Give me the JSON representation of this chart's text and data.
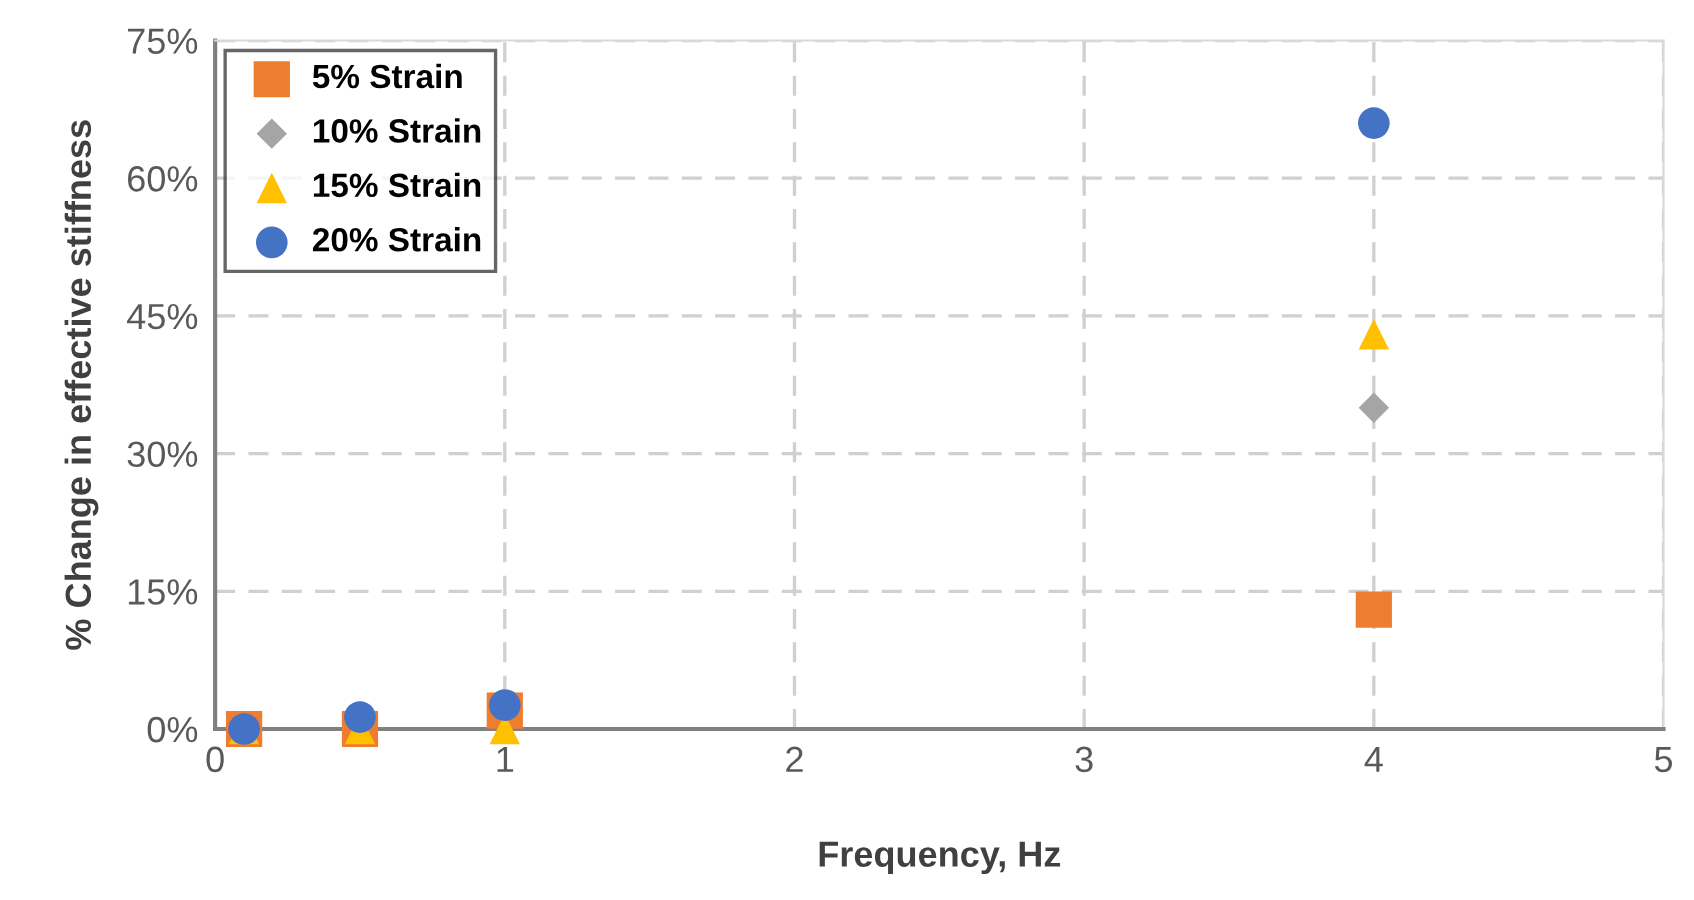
{
  "chart_data": {
    "type": "scatter",
    "xlabel": "Frequency, Hz",
    "ylabel": "% Change in effective stiffness",
    "x": [
      0.1,
      0.5,
      1,
      4
    ],
    "series": [
      {
        "name": "5% Strain",
        "color": "#ed7d31",
        "marker": "square",
        "values": [
          0,
          0,
          2,
          13
        ]
      },
      {
        "name": "10% Strain",
        "color": "#a5a5a5",
        "marker": "diamond",
        "values": [
          null,
          null,
          null,
          35
        ]
      },
      {
        "name": "15% Strain",
        "color": "#ffc000",
        "marker": "triangle",
        "values": [
          0,
          0,
          0,
          43
        ]
      },
      {
        "name": "20% Strain",
        "color": "#4472c4",
        "marker": "circle",
        "values": [
          0,
          1.3,
          2.6,
          66
        ]
      }
    ],
    "xlim": [
      0,
      5
    ],
    "xticks": [
      0,
      1,
      2,
      3,
      4,
      5
    ],
    "ylim": [
      0,
      75
    ],
    "yticks": [
      {
        "value": 0,
        "label": "0%"
      },
      {
        "value": 15,
        "label": "15%"
      },
      {
        "value": 30,
        "label": "30%"
      },
      {
        "value": 45,
        "label": "45%"
      },
      {
        "value": 60,
        "label": "60%"
      },
      {
        "value": 75,
        "label": "75%"
      }
    ],
    "grid": true,
    "legend": "top left"
  }
}
